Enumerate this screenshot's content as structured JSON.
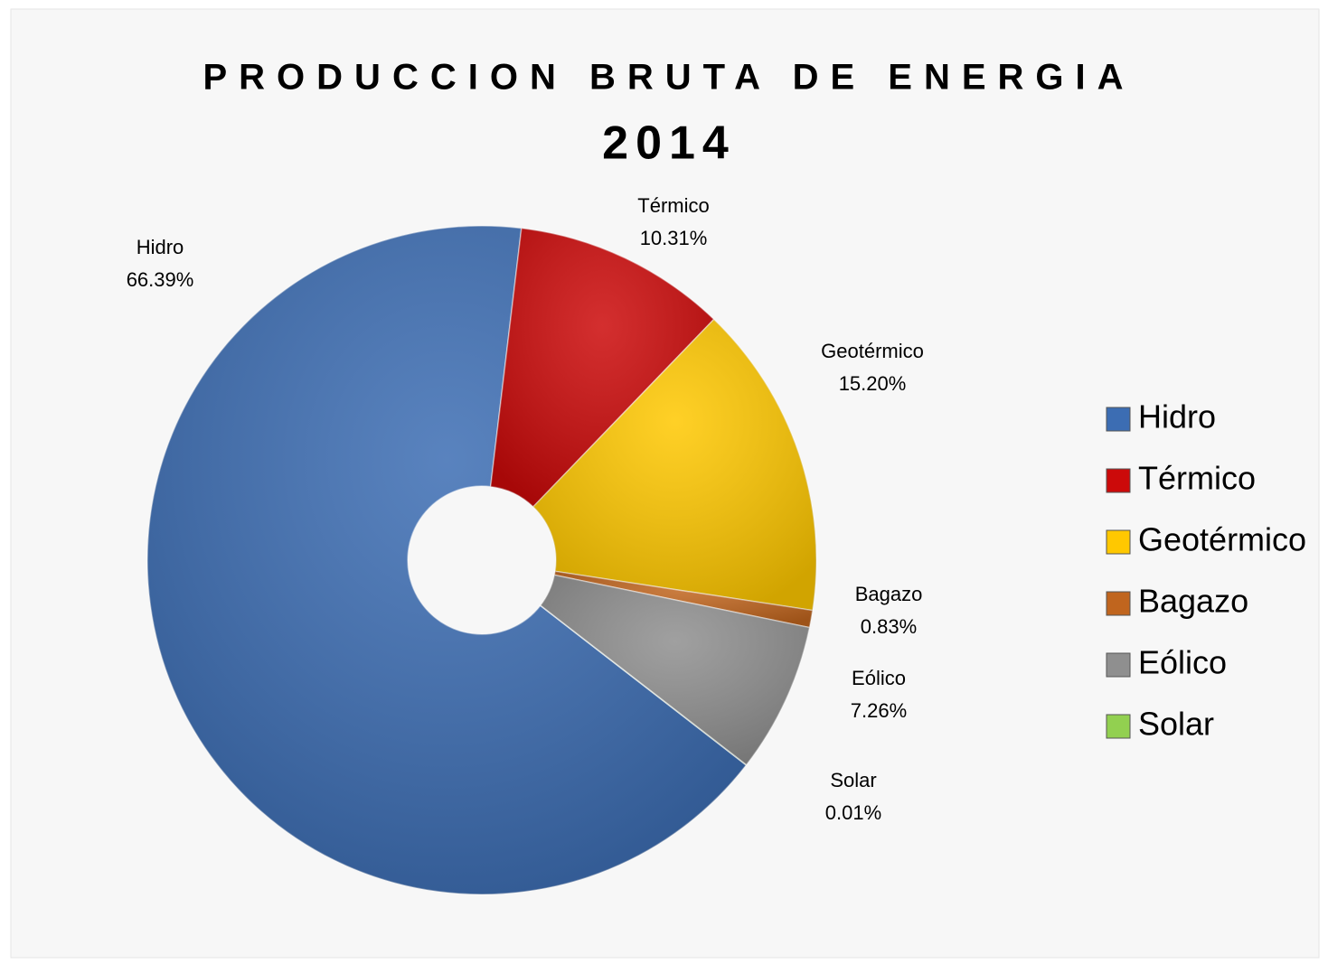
{
  "chart_data": {
    "type": "donut",
    "title": "PRODUCCION BRUTA DE ENERGIA",
    "subtitle": "2014",
    "categories": [
      "Hidro",
      "Térmico",
      "Geotérmico",
      "Bagazo",
      "Eólico",
      "Solar"
    ],
    "values": [
      66.39,
      10.31,
      15.2,
      0.83,
      7.26,
      0.01
    ],
    "value_labels": [
      "66.39%",
      "10.31%",
      "15.20%",
      "0.83%",
      "7.26%",
      "0.01%"
    ],
    "colors": [
      "#3c6db3",
      "#cc0a0a",
      "#ffc800",
      "#c0651e",
      "#8f8f8f",
      "#92d050"
    ],
    "legend": "right"
  }
}
